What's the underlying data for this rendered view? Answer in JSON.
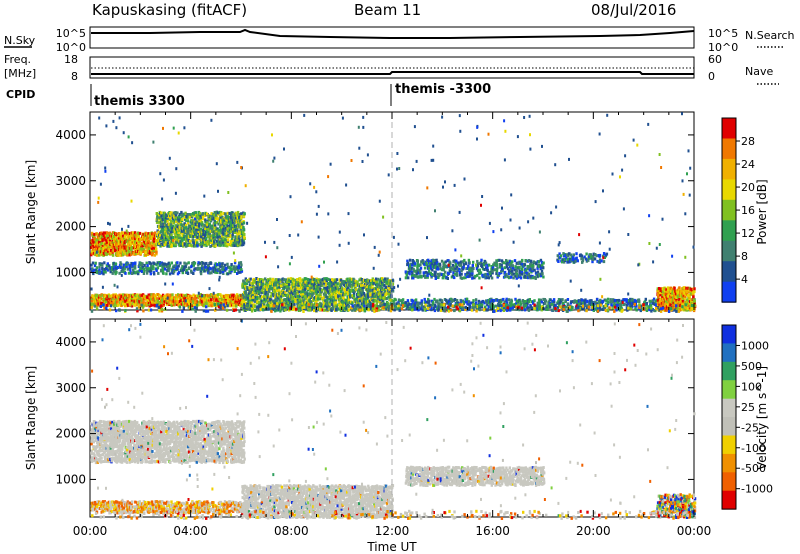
{
  "header": {
    "station": "Kapuskasing (fitACF)",
    "beam": "Beam 11",
    "date": "08/Jul/2016"
  },
  "status_panels": {
    "nsky_label": "N.Sky",
    "nsearch_label": "N.Search",
    "nsky_ticks": [
      "10^5",
      "10^0"
    ],
    "nsearch_ticks": [
      "10^5",
      "10^0"
    ],
    "freq_label_line1": "Freq.",
    "freq_label_line2": "[MHz]",
    "freq_ticks": [
      "18",
      "8"
    ],
    "nave_label": "Nave",
    "nave_ticks": [
      "60",
      "0"
    ],
    "cpid_label": "CPID",
    "cpid_segments": [
      {
        "label": "themis 3300",
        "start_hour": 0
      },
      {
        "label": "themis -3300",
        "start_hour": 12
      }
    ]
  },
  "chart_data": [
    {
      "type": "heatmap",
      "title": "",
      "ylabel": "Slant Range [km]",
      "xlim": [
        0,
        24
      ],
      "ylim": [
        180,
        4500
      ],
      "yticks": [
        1000,
        2000,
        3000,
        4000
      ],
      "colorbar": {
        "label": "Power [dB]",
        "ticks": [
          "28",
          "24",
          "20",
          "16",
          "12",
          "8",
          "4"
        ],
        "colors": [
          "#e00000",
          "#f07800",
          "#f0b000",
          "#e8d800",
          "#80c020",
          "#30a050",
          "#408070",
          "#205090",
          "#1040f0"
        ]
      },
      "echo_bands": [
        {
          "hours": [
            0.0,
            6.1
          ],
          "range_km": [
            300,
            550
          ],
          "level": "strong"
        },
        {
          "hours": [
            0.0,
            2.6
          ],
          "range_km": [
            1400,
            1900
          ],
          "level": "strong"
        },
        {
          "hours": [
            2.6,
            6.1
          ],
          "range_km": [
            1600,
            2350
          ],
          "level": "medium"
        },
        {
          "hours": [
            0.0,
            6.0
          ],
          "range_km": [
            1000,
            1250
          ],
          "level": "weak"
        },
        {
          "hours": [
            6.0,
            12.0
          ],
          "range_km": [
            200,
            900
          ],
          "level": "medium"
        },
        {
          "hours": [
            12.0,
            24.0
          ],
          "range_km": [
            200,
            450
          ],
          "level": "weak"
        },
        {
          "hours": [
            12.5,
            18.0
          ],
          "range_km": [
            900,
            1300
          ],
          "level": "weak"
        },
        {
          "hours": [
            18.5,
            20.5
          ],
          "range_km": [
            1250,
            1450
          ],
          "level": "weak"
        },
        {
          "hours": [
            22.5,
            24.0
          ],
          "range_km": [
            200,
            700
          ],
          "level": "strong"
        }
      ]
    },
    {
      "type": "heatmap",
      "title": "",
      "ylabel": "Slant Range [km]",
      "xlabel": "Time UT",
      "xlim": [
        0,
        24
      ],
      "xticks": [
        "00:00",
        "04:00",
        "08:00",
        "12:00",
        "16:00",
        "20:00",
        "00:00"
      ],
      "ylim": [
        180,
        4500
      ],
      "yticks": [
        1000,
        2000,
        3000,
        4000
      ],
      "colorbar": {
        "label": "Velocity [m s^-1]",
        "ticks": [
          "1000",
          "500",
          "100",
          "25",
          "-25",
          "-100",
          "-500",
          "-1000"
        ],
        "colors": [
          "#1030e0",
          "#2070c0",
          "#30a060",
          "#80d040",
          "#c8c8c0",
          "#c0c0b8",
          "#f0d000",
          "#f09000",
          "#f06000",
          "#e00000"
        ]
      },
      "echo_bands": [
        {
          "hours": [
            0.0,
            6.1
          ],
          "range_km": [
            300,
            550
          ],
          "level": "orange"
        },
        {
          "hours": [
            0.0,
            6.1
          ],
          "range_km": [
            1400,
            2300
          ],
          "level": "grey"
        },
        {
          "hours": [
            6.0,
            12.0
          ],
          "range_km": [
            200,
            900
          ],
          "level": "grey"
        },
        {
          "hours": [
            12.5,
            18.0
          ],
          "range_km": [
            900,
            1300
          ],
          "level": "grey"
        },
        {
          "hours": [
            22.5,
            24.0
          ],
          "range_km": [
            200,
            700
          ],
          "level": "mixed"
        }
      ]
    }
  ]
}
